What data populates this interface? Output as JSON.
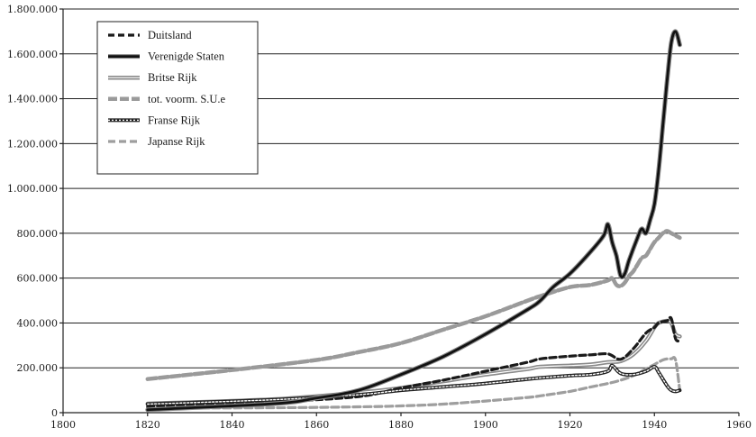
{
  "chart_data": {
    "type": "line",
    "title": "",
    "xlabel": "",
    "ylabel": "",
    "xlim": [
      1800,
      1960
    ],
    "ylim": [
      0,
      1800000
    ],
    "x_ticks": [
      "1800",
      "1820",
      "1840",
      "1860",
      "1880",
      "1900",
      "1920",
      "1940",
      "1960"
    ],
    "y_ticks": [
      "0",
      "200.000",
      "400.000",
      "600.000",
      "800.000",
      "1.000.000",
      "1.200.000",
      "1.400.000",
      "1.600.000",
      "1.800.000"
    ],
    "grid": "horizontal",
    "legend_position": "top-left",
    "series": [
      {
        "name": "Duitsland",
        "style": "black-dashed",
        "x": [
          1820,
          1850,
          1870,
          1880,
          1890,
          1900,
          1910,
          1913,
          1920,
          1925,
          1929,
          1932,
          1935,
          1938,
          1940,
          1941,
          1943,
          1944,
          1945,
          1946
        ],
        "y": [
          26000,
          48000,
          72000,
          110000,
          145000,
          185000,
          225000,
          240000,
          252000,
          258000,
          262000,
          238000,
          285000,
          355000,
          380000,
          400000,
          410000,
          420000,
          330000,
          320000
        ]
      },
      {
        "name": "Verenigde Staten",
        "style": "black-solid",
        "x": [
          1820,
          1850,
          1860,
          1870,
          1880,
          1890,
          1900,
          1910,
          1913,
          1916,
          1920,
          1925,
          1928,
          1929,
          1930,
          1931,
          1932,
          1933,
          1934,
          1936,
          1937,
          1938,
          1939,
          1940,
          1941,
          1942,
          1943,
          1944,
          1945,
          1946
        ],
        "y": [
          13000,
          40000,
          65000,
          100000,
          170000,
          250000,
          350000,
          460000,
          500000,
          560000,
          620000,
          720000,
          790000,
          840000,
          760000,
          700000,
          610000,
          620000,
          680000,
          780000,
          820000,
          800000,
          860000,
          930000,
          1080000,
          1280000,
          1480000,
          1650000,
          1700000,
          1640000
        ]
      },
      {
        "name": "Britse Rijk",
        "style": "grey-solid",
        "x": [
          1820,
          1850,
          1870,
          1880,
          1890,
          1900,
          1910,
          1913,
          1920,
          1925,
          1929,
          1932,
          1935,
          1938,
          1940,
          1941,
          1943,
          1944,
          1945,
          1946
        ],
        "y": [
          40000,
          60000,
          90000,
          110000,
          140000,
          170000,
          195000,
          205000,
          210000,
          215000,
          225000,
          230000,
          260000,
          320000,
          380000,
          400000,
          410000,
          400000,
          350000,
          340000
        ]
      },
      {
        "name": "tot. voorm. S.U.e",
        "style": "grey-dashed",
        "x": [
          1820,
          1840,
          1860,
          1870,
          1880,
          1890,
          1900,
          1910,
          1913,
          1920,
          1925,
          1929,
          1930,
          1931,
          1932,
          1933,
          1934,
          1935,
          1936,
          1937,
          1938,
          1939,
          1940,
          1941,
          1942,
          1943,
          1944,
          1945,
          1946
        ],
        "y": [
          150000,
          190000,
          235000,
          270000,
          310000,
          370000,
          430000,
          500000,
          520000,
          560000,
          570000,
          590000,
          600000,
          570000,
          565000,
          580000,
          610000,
          630000,
          660000,
          690000,
          700000,
          730000,
          760000,
          780000,
          800000,
          810000,
          800000,
          790000,
          780000
        ]
      },
      {
        "name": "Franse Rijk",
        "style": "black-dotted",
        "x": [
          1820,
          1850,
          1870,
          1880,
          1890,
          1900,
          1910,
          1913,
          1920,
          1925,
          1929,
          1930,
          1932,
          1935,
          1938,
          1940,
          1941,
          1943,
          1944,
          1945,
          1946
        ],
        "y": [
          38000,
          58000,
          80000,
          100000,
          115000,
          130000,
          150000,
          155000,
          165000,
          170000,
          185000,
          210000,
          175000,
          170000,
          185000,
          205000,
          180000,
          120000,
          100000,
          95000,
          100000
        ]
      },
      {
        "name": "Japanse Rijk",
        "style": "grey-dashed-short",
        "x": [
          1820,
          1850,
          1870,
          1880,
          1890,
          1900,
          1910,
          1913,
          1920,
          1925,
          1929,
          1932,
          1935,
          1938,
          1940,
          1942,
          1943,
          1944,
          1945,
          1946
        ],
        "y": [
          20000,
          22000,
          26000,
          30000,
          38000,
          52000,
          68000,
          75000,
          95000,
          115000,
          130000,
          145000,
          165000,
          195000,
          215000,
          235000,
          240000,
          240000,
          235000,
          100000
        ]
      }
    ]
  }
}
